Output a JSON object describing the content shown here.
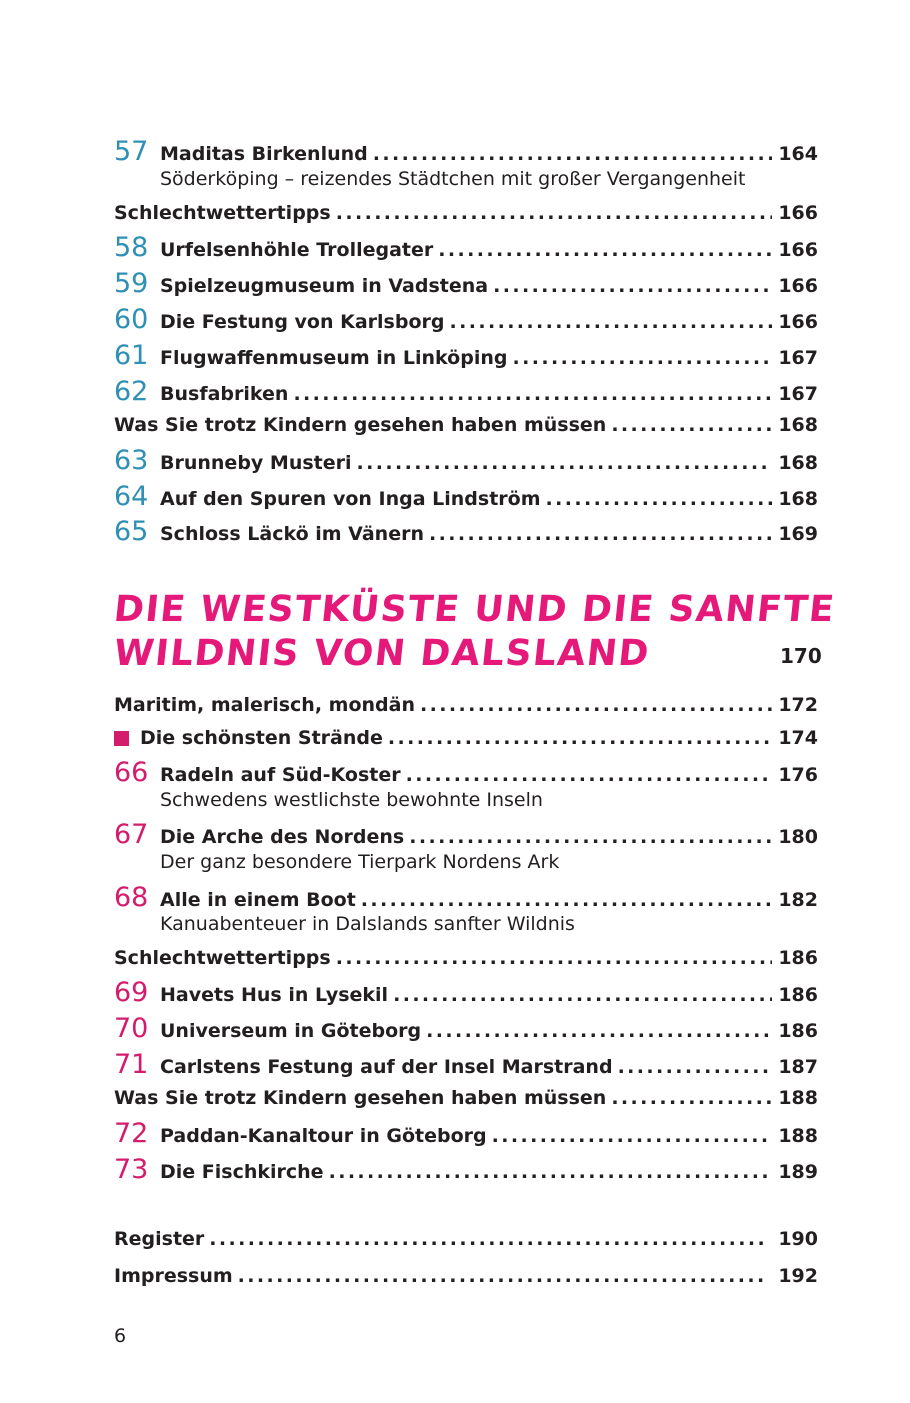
{
  "colors": {
    "section_blue": "#2f8fb4",
    "section_pink": "#d41c6d",
    "heading_pink": "#e4197a"
  },
  "section1": {
    "e57": {
      "num": "57",
      "title": "Maditas Birkenlund",
      "page": "164",
      "subtitle": "Söderköping – reizendes Städtchen mit großer Vergangenheit"
    },
    "bad_weather": {
      "title": "Schlechtwettertipps",
      "page": "166"
    },
    "e58": {
      "num": "58",
      "title": "Urfelsenhöhle Trollegater",
      "page": "166"
    },
    "e59": {
      "num": "59",
      "title": "Spielzeugmuseum in Vadstena",
      "page": "166"
    },
    "e60": {
      "num": "60",
      "title": "Die Festung von Karlsborg",
      "page": "166"
    },
    "e61": {
      "num": "61",
      "title": "Flugwaffenmuseum in Linköping",
      "page": "167"
    },
    "e62": {
      "num": "62",
      "title": "Busfabriken",
      "page": "167"
    },
    "must_see": {
      "title": "Was Sie trotz Kindern gesehen haben müssen",
      "page": "168"
    },
    "e63": {
      "num": "63",
      "title": "Brunneby Musteri",
      "page": "168"
    },
    "e64": {
      "num": "64",
      "title": "Auf den Spuren von Inga Lindström",
      "page": "168"
    },
    "e65": {
      "num": "65",
      "title": "Schloss Läckö im Vänern",
      "page": "169"
    }
  },
  "chapter": {
    "title_line1": "DIE WESTKÜSTE UND DIE SANFTE",
    "title_line2": "WILDNIS VON DALSLAND",
    "page": "170"
  },
  "section2": {
    "intro": {
      "title": "Maritim, malerisch, mondän",
      "page": "172"
    },
    "beaches": {
      "title": "Die schönsten Strände",
      "page": "174"
    },
    "e66": {
      "num": "66",
      "title": "Radeln auf Süd-Koster",
      "page": "176",
      "subtitle": "Schwedens westlichste bewohnte Inseln"
    },
    "e67": {
      "num": "67",
      "title": "Die Arche des Nordens",
      "page": "180",
      "subtitle": "Der ganz besondere Tierpark Nordens Ark"
    },
    "e68": {
      "num": "68",
      "title": "Alle in einem Boot",
      "page": "182",
      "subtitle": "Kanuabenteuer in Dalslands sanfter Wildnis"
    },
    "bad_weather": {
      "title": "Schlechtwettertipps",
      "page": "186"
    },
    "e69": {
      "num": "69",
      "title": "Havets Hus in Lysekil",
      "page": "186"
    },
    "e70": {
      "num": "70",
      "title": "Universeum in Göteborg",
      "page": "186"
    },
    "e71": {
      "num": "71",
      "title": "Carlstens Festung auf der Insel Marstrand",
      "page": "187"
    },
    "must_see": {
      "title": "Was Sie trotz Kindern gesehen haben müssen",
      "page": "188"
    },
    "e72": {
      "num": "72",
      "title": "Paddan-Kanaltour in Göteborg",
      "page": "188"
    },
    "e73": {
      "num": "73",
      "title": "Die Fischkirche",
      "page": "189"
    }
  },
  "back_matter": {
    "register": {
      "title": "Register",
      "page": "190"
    },
    "impressum": {
      "title": "Impressum",
      "page": "192"
    }
  },
  "page_number": "6"
}
